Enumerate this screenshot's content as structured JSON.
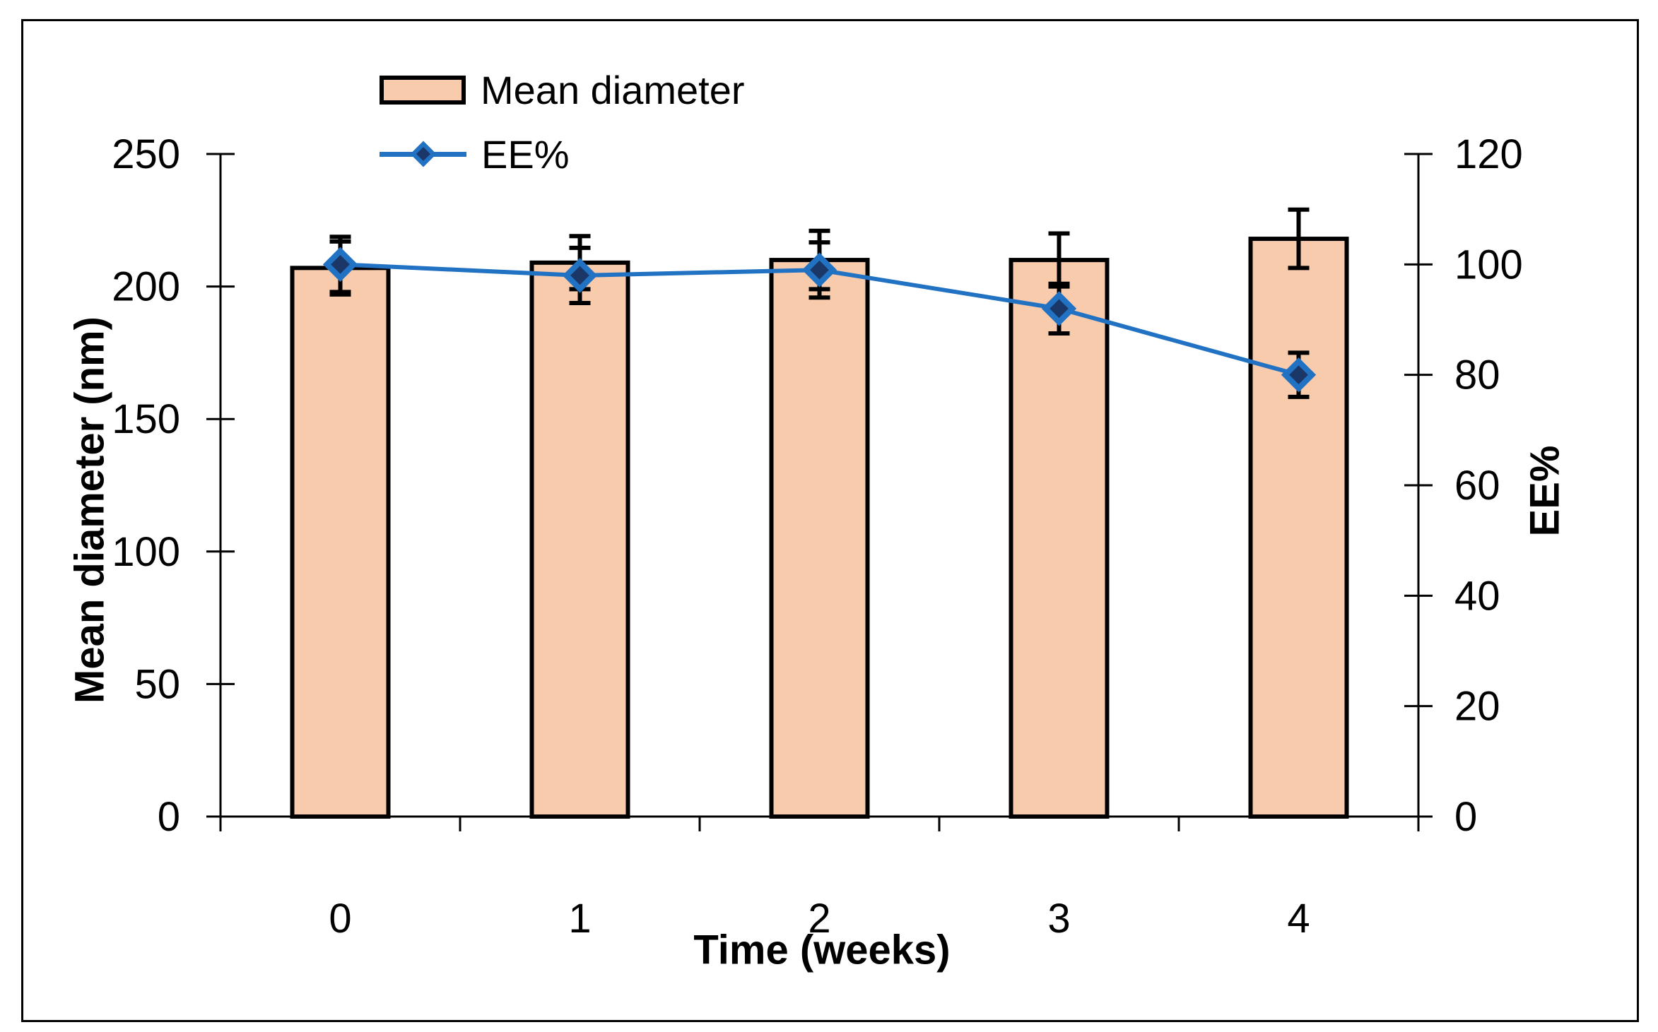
{
  "chart_data": {
    "type": "bar+line",
    "categories": [
      "0",
      "1",
      "2",
      "3",
      "4"
    ],
    "series": [
      {
        "name": "Mean diameter",
        "type": "bar",
        "axis": "left",
        "values": [
          207,
          209,
          210,
          210,
          218
        ],
        "errors": [
          10,
          10,
          11,
          10,
          11
        ]
      },
      {
        "name": "EE%",
        "type": "line",
        "axis": "right",
        "values": [
          100,
          98,
          99,
          92,
          80
        ],
        "errors": [
          5,
          5,
          5,
          4.5,
          4
        ]
      }
    ],
    "xlabel": "Time (weeks)",
    "ylabel_left": "Mean diameter (nm)",
    "ylabel_right": "EE%",
    "left_axis": {
      "min": 0,
      "max": 250,
      "ticks": [
        0,
        50,
        100,
        150,
        200,
        250
      ]
    },
    "right_axis": {
      "min": 0,
      "max": 120,
      "ticks": [
        0,
        20,
        40,
        60,
        80,
        100,
        120
      ]
    },
    "grid": "off",
    "legend_position": "top-left-inside",
    "colors": {
      "bar_fill": "#F8CBAD",
      "bar_stroke": "#000000",
      "line": "#2272C3",
      "marker_fill": "#1A3768",
      "error_bar": "#000000",
      "axis": "#000000",
      "text": "#000000",
      "frame": "#000000",
      "background": "#FFFFFF"
    }
  }
}
